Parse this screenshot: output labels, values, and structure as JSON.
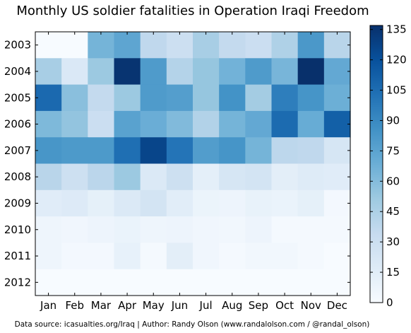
{
  "chart_data": {
    "type": "heatmap",
    "title": "Monthly US soldier fatalities in Operation Iraqi Freedom",
    "xlabel": "",
    "ylabel": "",
    "columns": [
      "Jan",
      "Feb",
      "Mar",
      "Apr",
      "May",
      "Jun",
      "Jul",
      "Aug",
      "Sep",
      "Oct",
      "Nov",
      "Dec"
    ],
    "rows": [
      "2003",
      "2004",
      "2005",
      "2006",
      "2007",
      "2008",
      "2009",
      "2010",
      "2011",
      "2012"
    ],
    "values": [
      [
        0,
        0,
        65,
        74,
        37,
        30,
        47,
        35,
        31,
        44,
        82,
        40
      ],
      [
        47,
        20,
        52,
        135,
        80,
        42,
        54,
        66,
        80,
        64,
        137,
        72
      ],
      [
        107,
        58,
        35,
        52,
        80,
        78,
        54,
        85,
        49,
        96,
        84,
        68
      ],
      [
        62,
        55,
        31,
        76,
        69,
        61,
        43,
        65,
        72,
        106,
        70,
        112
      ],
      [
        83,
        81,
        81,
        104,
        126,
        101,
        79,
        84,
        65,
        38,
        37,
        23
      ],
      [
        40,
        29,
        39,
        52,
        19,
        29,
        13,
        23,
        25,
        14,
        17,
        16
      ],
      [
        16,
        18,
        12,
        19,
        25,
        15,
        8,
        7,
        10,
        9,
        12,
        3
      ],
      [
        6,
        5,
        7,
        9,
        6,
        7,
        5,
        4,
        7,
        2,
        2,
        2
      ],
      [
        6,
        3,
        3,
        11,
        2,
        14,
        5,
        2,
        4,
        4,
        2,
        0
      ],
      [
        0,
        0,
        0,
        0,
        0,
        0,
        0,
        0,
        0,
        0,
        0,
        0
      ]
    ],
    "colorbar": {
      "min": 0,
      "max": 137,
      "ticks": [
        0,
        15,
        30,
        45,
        60,
        75,
        90,
        105,
        120,
        135
      ],
      "colormap": "Blues",
      "stops": [
        "#f7fbff",
        "#deebf7",
        "#c6dbef",
        "#9ecae1",
        "#6baed6",
        "#4292c6",
        "#2171b5",
        "#08519c",
        "#08306b"
      ]
    },
    "grid": false,
    "legend": "colorbar-right"
  },
  "footer": {
    "source": "Data source: icasualties.org/Iraq | Author: Randy Olson (www.randalolson.com / @randal_olson)"
  }
}
